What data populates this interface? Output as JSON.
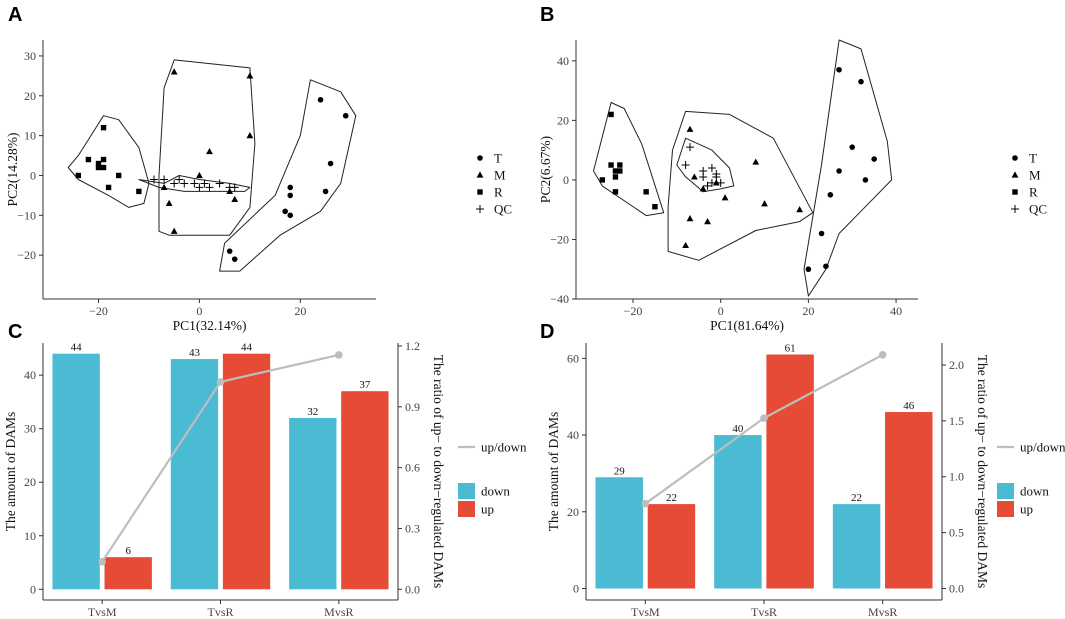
{
  "panels": {
    "A": "A",
    "B": "B",
    "C": "C",
    "D": "D"
  },
  "colors": {
    "down": "#4BBBD4",
    "up": "#E64B35",
    "ratio": "#BDBDBD",
    "points": "#000000"
  },
  "chart_data": [
    {
      "id": "A",
      "type": "scatter",
      "xlabel": "PC1(32.14%)",
      "ylabel": "PC2(14.28%)",
      "xlim": [
        -31,
        35
      ],
      "ylim": [
        -31,
        34
      ],
      "xticks": [
        -20,
        0,
        20
      ],
      "yticks": [
        -20,
        -10,
        0,
        10,
        20,
        30
      ],
      "legend": [
        "T",
        "M",
        "R",
        "QC"
      ],
      "series": [
        {
          "name": "T",
          "points": [
            [
              24,
              19
            ],
            [
              29,
              15
            ],
            [
              26,
              3
            ],
            [
              18,
              -3
            ],
            [
              18,
              -5
            ],
            [
              25,
              -4
            ],
            [
              17,
              -9
            ],
            [
              18,
              -10
            ],
            [
              6,
              -19
            ],
            [
              7,
              -21
            ]
          ]
        },
        {
          "name": "M",
          "points": [
            [
              -5,
              26
            ],
            [
              10,
              25
            ],
            [
              10,
              10
            ],
            [
              2,
              6
            ],
            [
              0,
              0
            ],
            [
              -7,
              -3
            ],
            [
              6,
              -4
            ],
            [
              -6,
              -7
            ],
            [
              7,
              -6
            ],
            [
              -5,
              -14
            ]
          ]
        },
        {
          "name": "R",
          "points": [
            [
              -19,
              12
            ],
            [
              -22,
              4
            ],
            [
              -20,
              3
            ],
            [
              -19,
              4
            ],
            [
              -20,
              2
            ],
            [
              -19,
              2
            ],
            [
              -16,
              0
            ],
            [
              -18,
              -3
            ],
            [
              -24,
              0
            ],
            [
              -12,
              -4
            ]
          ]
        },
        {
          "name": "QC",
          "points": [
            [
              -9,
              -1
            ],
            [
              -7,
              -1
            ],
            [
              -5,
              -2
            ],
            [
              -3,
              -2
            ],
            [
              -1,
              -2
            ],
            [
              0,
              -3
            ],
            [
              2,
              -3
            ],
            [
              4,
              -2
            ],
            [
              6,
              -3
            ],
            [
              7,
              -3
            ],
            [
              -4,
              -1
            ],
            [
              1,
              -2
            ]
          ]
        }
      ],
      "hulls": [
        [
          [
            -19,
            15
          ],
          [
            -16,
            14
          ],
          [
            -12,
            7
          ],
          [
            -10,
            -2
          ],
          [
            -11,
            -7
          ],
          [
            -14,
            -8
          ],
          [
            -18,
            -5
          ],
          [
            -24,
            -1
          ],
          [
            -26,
            2
          ],
          [
            -24,
            5
          ]
        ],
        [
          [
            -7,
            -2
          ],
          [
            -4,
            0
          ],
          [
            0,
            -1
          ],
          [
            6,
            -2
          ],
          [
            10,
            -3
          ],
          [
            9,
            -4
          ],
          [
            3,
            -4
          ],
          [
            -3,
            -4
          ],
          [
            -8,
            -3
          ],
          [
            -12,
            -1
          ]
        ],
        [
          [
            -5,
            29
          ],
          [
            10,
            27
          ],
          [
            11,
            8
          ],
          [
            10,
            -8
          ],
          [
            6,
            -15
          ],
          [
            -6,
            -15
          ],
          [
            -8,
            -14
          ],
          [
            -8,
            0
          ],
          [
            -7,
            22
          ]
        ],
        [
          [
            22,
            24
          ],
          [
            28,
            21
          ],
          [
            31,
            15
          ],
          [
            28,
            -2
          ],
          [
            24,
            -9
          ],
          [
            16,
            -15
          ],
          [
            8,
            -24
          ],
          [
            4,
            -24
          ],
          [
            5,
            -17
          ],
          [
            15,
            -5
          ],
          [
            20,
            10
          ]
        ]
      ]
    },
    {
      "id": "B",
      "type": "scatter",
      "xlabel": "PC1(81.64%)",
      "ylabel": "PC2(6.67%)",
      "xlim": [
        -33,
        45
      ],
      "ylim": [
        -40,
        47
      ],
      "xticks": [
        -20,
        0,
        20,
        40
      ],
      "yticks": [
        -40,
        -20,
        0,
        20,
        40
      ],
      "legend": [
        "T",
        "M",
        "R",
        "QC"
      ],
      "series": [
        {
          "name": "T",
          "points": [
            [
              27,
              37
            ],
            [
              32,
              33
            ],
            [
              30,
              11
            ],
            [
              35,
              7
            ],
            [
              27,
              3
            ],
            [
              33,
              0
            ],
            [
              25,
              -5
            ],
            [
              23,
              -18
            ],
            [
              24,
              -29
            ],
            [
              20,
              -30
            ]
          ]
        },
        {
          "name": "M",
          "points": [
            [
              -7,
              17
            ],
            [
              8,
              6
            ],
            [
              -6,
              1
            ],
            [
              -1,
              -1
            ],
            [
              -4,
              -3
            ],
            [
              1,
              -6
            ],
            [
              10,
              -8
            ],
            [
              18,
              -10
            ],
            [
              -7,
              -13
            ],
            [
              -8,
              -22
            ],
            [
              -3,
              -14
            ]
          ]
        },
        {
          "name": "R",
          "points": [
            [
              -25,
              22
            ],
            [
              -25,
              5
            ],
            [
              -24,
              3
            ],
            [
              -24,
              1
            ],
            [
              -23,
              3
            ],
            [
              -23,
              5
            ],
            [
              -27,
              0
            ],
            [
              -24,
              -4
            ],
            [
              -17,
              -4
            ],
            [
              -15,
              -9
            ]
          ]
        },
        {
          "name": "QC",
          "points": [
            [
              -7,
              11
            ],
            [
              -8,
              5
            ],
            [
              -4,
              3
            ],
            [
              -2,
              4
            ],
            [
              -4,
              1
            ],
            [
              -1,
              1
            ],
            [
              -2,
              -1
            ],
            [
              0,
              -1
            ],
            [
              -3,
              -2
            ],
            [
              -1,
              2
            ]
          ]
        }
      ],
      "hulls": [
        [
          [
            -25,
            26
          ],
          [
            -22,
            24
          ],
          [
            -18,
            12
          ],
          [
            -13,
            -11
          ],
          [
            -17,
            -12
          ],
          [
            -27,
            -2
          ],
          [
            -29,
            3
          ]
        ],
        [
          [
            -8,
            14
          ],
          [
            -2,
            10
          ],
          [
            2,
            4
          ],
          [
            3,
            -2
          ],
          [
            0,
            -3
          ],
          [
            -4,
            -4
          ],
          [
            -8,
            1
          ],
          [
            -10,
            5
          ]
        ],
        [
          [
            -8,
            23
          ],
          [
            2,
            22
          ],
          [
            12,
            14
          ],
          [
            21,
            -11
          ],
          [
            18,
            -14
          ],
          [
            8,
            -17
          ],
          [
            -5,
            -27
          ],
          [
            -12,
            -24
          ],
          [
            -12,
            -9
          ],
          [
            -11,
            10
          ]
        ],
        [
          [
            27,
            47
          ],
          [
            32,
            44
          ],
          [
            38,
            13
          ],
          [
            39,
            0
          ],
          [
            33,
            -9
          ],
          [
            27,
            -18
          ],
          [
            24,
            -30
          ],
          [
            20,
            -39
          ],
          [
            19,
            -30
          ],
          [
            23,
            5
          ]
        ]
      ]
    },
    {
      "id": "C",
      "type": "bar",
      "categories": [
        "TvsM",
        "TvsR",
        "MvsR"
      ],
      "series": [
        {
          "name": "down",
          "values": [
            44,
            43,
            32
          ]
        },
        {
          "name": "up",
          "values": [
            6,
            44,
            37
          ]
        }
      ],
      "ratio": {
        "name": "up/down",
        "values": [
          0.136,
          1.023,
          1.156
        ]
      },
      "ylabel": "The amount of DAMs",
      "y2label": "The ratio of up− to down−regulated DAMs",
      "ylim": [
        -2,
        46
      ],
      "yticks": [
        0,
        10,
        20,
        30,
        40
      ],
      "y2ticks": [
        0.0,
        0.3,
        0.6,
        0.9,
        1.2
      ],
      "y2ticklabels": [
        "0.0",
        "0.3",
        "0.6",
        "0.9",
        "1.2"
      ],
      "legend": {
        "line": "up/down",
        "fill": [
          "down",
          "up"
        ]
      }
    },
    {
      "id": "D",
      "type": "bar",
      "categories": [
        "TvsM",
        "TvsR",
        "MvsR"
      ],
      "series": [
        {
          "name": "down",
          "values": [
            29,
            40,
            22
          ]
        },
        {
          "name": "up",
          "values": [
            22,
            61,
            46
          ]
        }
      ],
      "ratio": {
        "name": "up/down",
        "values": [
          0.759,
          1.525,
          2.091
        ]
      },
      "ylabel": "The amount of DAMs",
      "y2label": "The ratio of up− to down−regulated DAMs",
      "ylim": [
        -3,
        64
      ],
      "yticks": [
        0,
        20,
        40,
        60
      ],
      "y2ticks": [
        0.0,
        0.5,
        1.0,
        1.5,
        2.0
      ],
      "y2ticklabels": [
        "0.0",
        "0.5",
        "1.0",
        "1.5",
        "2.0"
      ],
      "legend": {
        "line": "up/down",
        "fill": [
          "down",
          "up"
        ]
      }
    }
  ]
}
